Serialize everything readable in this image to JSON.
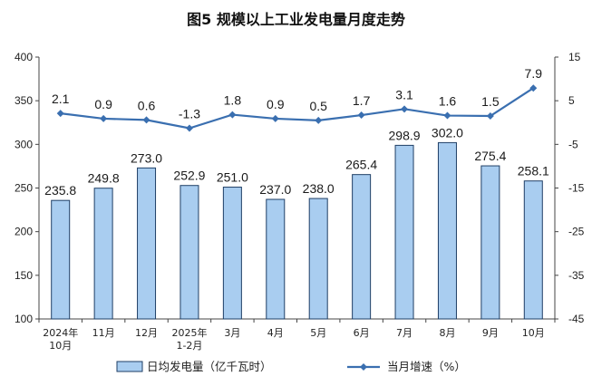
{
  "chart_data": {
    "type": "bar",
    "title": "图5  规模以上工业发电量月度走势",
    "categories": [
      [
        "2024年",
        "10月"
      ],
      [
        "11月"
      ],
      [
        "12月"
      ],
      [
        "2025年",
        "1-2月"
      ],
      [
        "3月"
      ],
      [
        "4月"
      ],
      [
        "5月"
      ],
      [
        "6月"
      ],
      [
        "7月"
      ],
      [
        "8月"
      ],
      [
        "9月"
      ],
      [
        "10月"
      ]
    ],
    "series": [
      {
        "name": "日均发电量（亿千瓦时）",
        "type": "bar",
        "axis": "left",
        "values": [
          235.8,
          249.8,
          273.0,
          252.9,
          251.0,
          237.0,
          238.0,
          265.4,
          298.9,
          302.0,
          275.4,
          258.1
        ],
        "labels": [
          "235.8",
          "249.8",
          "273.0",
          "252.9",
          "251.0",
          "237.0",
          "238.0",
          "265.4",
          "298.9",
          "302.0",
          "275.4",
          "258.1"
        ]
      },
      {
        "name": "当月增速（%）",
        "type": "line",
        "axis": "right",
        "values": [
          2.1,
          0.9,
          0.6,
          -1.3,
          1.8,
          0.9,
          0.5,
          1.7,
          3.1,
          1.6,
          1.5,
          7.9
        ],
        "labels": [
          "2.1",
          "0.9",
          "0.6",
          "-1.3",
          "1.8",
          "0.9",
          "0.5",
          "1.7",
          "3.1",
          "1.6",
          "1.5",
          "7.9"
        ]
      }
    ],
    "y_left": {
      "ylim": [
        100,
        400
      ],
      "ticks": [
        "100",
        "150",
        "200",
        "250",
        "300",
        "350",
        "400"
      ],
      "tick_values": [
        100,
        150,
        200,
        250,
        300,
        350,
        400
      ]
    },
    "y_right": {
      "ylim": [
        -45,
        15
      ],
      "ticks": [
        "-45",
        "-35",
        "-25",
        "-15",
        "-5",
        "5",
        "15"
      ],
      "tick_values": [
        -45,
        -35,
        -25,
        -15,
        -5,
        5,
        15
      ]
    },
    "grid": false,
    "legend_position": "bottom-center",
    "colors": {
      "bar_fill": "#a9cdf0",
      "bar_stroke": "#1f3f66",
      "line": "#3a6fb0",
      "axis": "#444444"
    }
  }
}
